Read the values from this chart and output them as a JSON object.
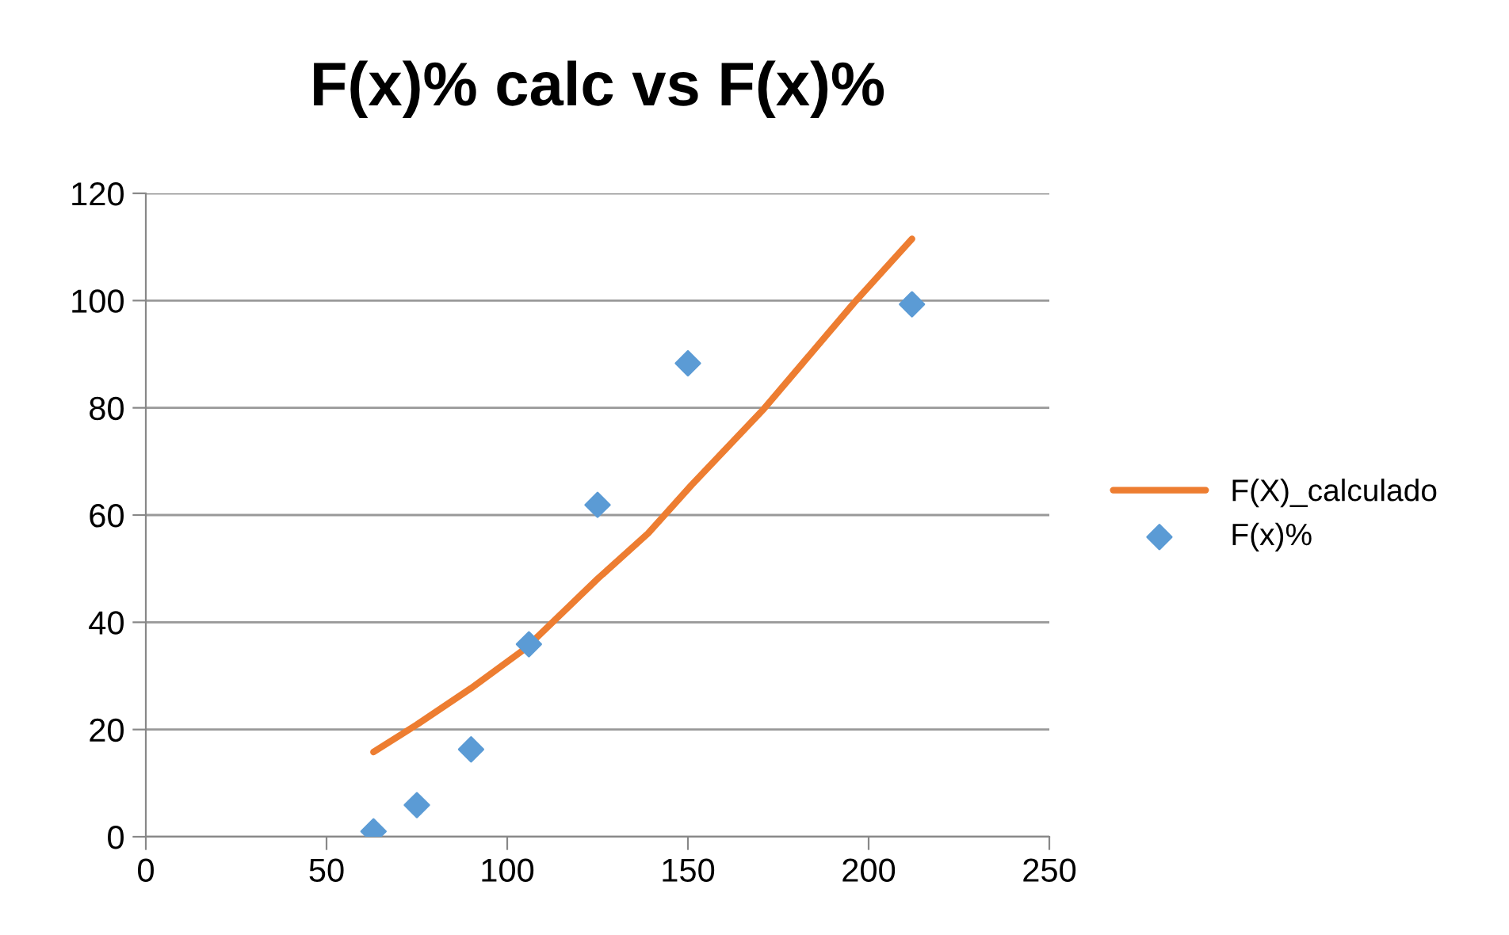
{
  "chart_data": {
    "type": "scatter",
    "title": "F(x)% calc vs F(x)%",
    "series": [
      {
        "name": "F(X)_calculado",
        "type": "line",
        "color": "#ed7d31",
        "marker": "none",
        "x": [
          63,
          75,
          90,
          105,
          125,
          139,
          151,
          171,
          196,
          212
        ],
        "values": [
          15.8,
          20.9,
          27.7,
          35.1,
          48.1,
          56.6,
          65.6,
          79.8,
          99.6,
          111.5
        ]
      },
      {
        "name": "F(x)%",
        "color": "#5b9bd5",
        "marker": "diamond",
        "x": [
          63,
          75,
          90,
          106,
          125,
          150,
          212
        ],
        "values": [
          1.0,
          5.9,
          16.3,
          35.9,
          61.9,
          88.3,
          99.3
        ]
      }
    ],
    "xlim": [
      0,
      250
    ],
    "xticks": [
      0,
      50,
      100,
      150,
      200,
      250
    ],
    "ylim": [
      0,
      120
    ],
    "yticks": [
      0,
      20,
      40,
      60,
      80,
      100,
      120
    ],
    "grid": "y",
    "legend": "right"
  }
}
